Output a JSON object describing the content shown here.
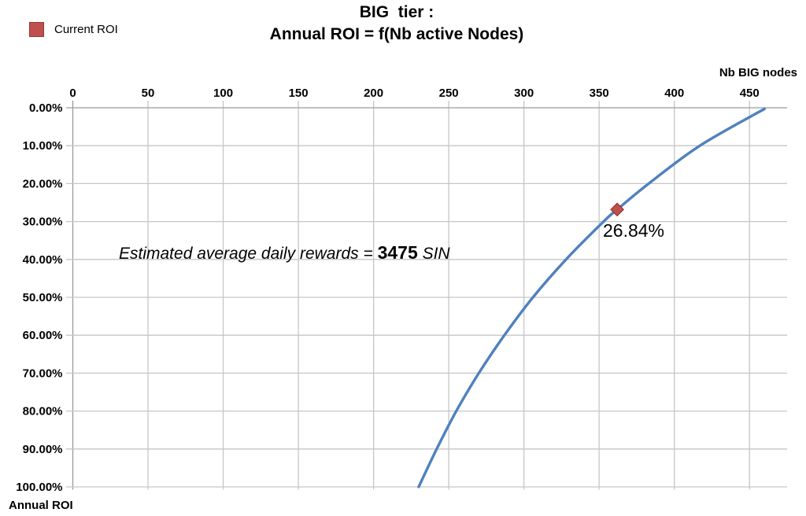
{
  "title": {
    "line1": "BIG  tier :",
    "line2": "Annual ROI = f(Nb active Nodes)"
  },
  "legend": {
    "label": "Current ROI",
    "swatch_color": "#c0504d",
    "swatch_border_color": "#8e3a37"
  },
  "axes": {
    "x_title": "Nb BIG nodes",
    "y_title": "Annual ROI"
  },
  "annotation": {
    "prefix": "Estimated average daily rewards = ",
    "value": "3475",
    "suffix": " SIN"
  },
  "chart_data": {
    "type": "line",
    "title": "BIG tier : Annual ROI = f(Nb active Nodes)",
    "xlabel": "Nb BIG nodes",
    "ylabel": "Annual ROI",
    "x_axis": {
      "min": 0,
      "max": 475,
      "ticks": [
        0,
        50,
        100,
        150,
        200,
        250,
        300,
        350,
        400,
        450
      ],
      "position": "top"
    },
    "y_axis": {
      "min": 0,
      "max": 100,
      "inverted": true,
      "ticks": [
        0,
        10,
        20,
        30,
        40,
        50,
        60,
        70,
        80,
        90,
        100
      ],
      "tick_labels": [
        "0.00%",
        "10.00%",
        "20.00%",
        "30.00%",
        "40.00%",
        "50.00%",
        "60.00%",
        "70.00%",
        "80.00%",
        "90.00%",
        "100.00%"
      ],
      "side": "left"
    },
    "grid": true,
    "legend_position": "top-left",
    "series": [
      {
        "name": "Annual ROI curve",
        "color": "#4f81bd",
        "points": [
          [
            230,
            100
          ],
          [
            242,
            90
          ],
          [
            255,
            80
          ],
          [
            270,
            70
          ],
          [
            287,
            60
          ],
          [
            306,
            50
          ],
          [
            328,
            40
          ],
          [
            353,
            30
          ],
          [
            362,
            26.84
          ],
          [
            383,
            20
          ],
          [
            417,
            10
          ],
          [
            460,
            0.3
          ]
        ]
      }
    ],
    "marker": {
      "series": "Current ROI",
      "x": 362,
      "y": 26.84,
      "label": "26.84%",
      "color": "#c0504d",
      "border_color": "#953735"
    },
    "colors": {
      "grid": "#c6c6c6",
      "axis": "#9a9a9a",
      "text": "#000000"
    }
  }
}
